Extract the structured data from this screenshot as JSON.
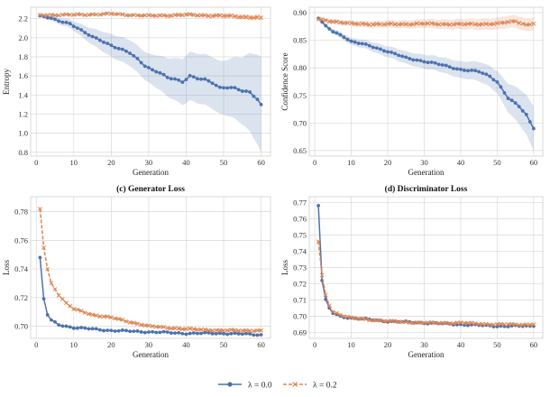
{
  "chart_data": [
    {
      "type": "line",
      "title": "",
      "xlabel": "Generation",
      "ylabel": "Entropy",
      "xlim": [
        -1.5,
        62.5
      ],
      "ylim": [
        0.76,
        2.32
      ],
      "xticks": [
        0,
        10,
        20,
        30,
        40,
        50,
        60
      ],
      "yticks": [
        0.8,
        1.0,
        1.2,
        1.4,
        1.6,
        1.8,
        2.0,
        2.2
      ],
      "ytick_decimals": 1,
      "series": [
        {
          "name": "λ = 0.0",
          "knots": [
            [
              1,
              2.23
            ],
            [
              3,
              2.21
            ],
            [
              5,
              2.19
            ],
            [
              7,
              2.17
            ],
            [
              9,
              2.15
            ],
            [
              11,
              2.1
            ],
            [
              13,
              2.05
            ],
            [
              15,
              2.01
            ],
            [
              17,
              1.98
            ],
            [
              19,
              1.94
            ],
            [
              21,
              1.9
            ],
            [
              23,
              1.87
            ],
            [
              25,
              1.84
            ],
            [
              27,
              1.78
            ],
            [
              29,
              1.71
            ],
            [
              31,
              1.66
            ],
            [
              33,
              1.63
            ],
            [
              35,
              1.58
            ],
            [
              37,
              1.57
            ],
            [
              39,
              1.54
            ],
            [
              41,
              1.6
            ],
            [
              43,
              1.57
            ],
            [
              45,
              1.56
            ],
            [
              47,
              1.53
            ],
            [
              49,
              1.48
            ],
            [
              51,
              1.48
            ],
            [
              53,
              1.47
            ],
            [
              55,
              1.44
            ],
            [
              57,
              1.43
            ],
            [
              59,
              1.36
            ],
            [
              60,
              1.3
            ]
          ],
          "band_knots": [
            [
              1,
              0.01
            ],
            [
              10,
              0.05
            ],
            [
              20,
              0.12
            ],
            [
              30,
              0.15
            ],
            [
              40,
              0.25
            ],
            [
              50,
              0.28
            ],
            [
              55,
              0.35
            ],
            [
              60,
              0.5
            ]
          ]
        },
        {
          "name": "λ = 0.2",
          "knots": [
            [
              1,
              2.24
            ],
            [
              10,
              2.24
            ],
            [
              20,
              2.25
            ],
            [
              30,
              2.23
            ],
            [
              40,
              2.24
            ],
            [
              50,
              2.23
            ],
            [
              60,
              2.21
            ]
          ],
          "band_knots": [
            [
              1,
              0.01
            ],
            [
              30,
              0.02
            ],
            [
              60,
              0.03
            ]
          ]
        }
      ]
    },
    {
      "type": "line",
      "title": "",
      "xlabel": "Generation",
      "ylabel": "Confidence Score",
      "xlim": [
        -1.5,
        62.5
      ],
      "ylim": [
        0.64,
        0.91
      ],
      "xticks": [
        0,
        10,
        20,
        30,
        40,
        50,
        60
      ],
      "yticks": [
        0.65,
        0.7,
        0.75,
        0.8,
        0.85,
        0.9
      ],
      "ytick_decimals": 2,
      "series": [
        {
          "name": "λ = 0.0",
          "knots": [
            [
              1,
              0.89
            ],
            [
              3,
              0.875
            ],
            [
              5,
              0.866
            ],
            [
              8,
              0.857
            ],
            [
              10,
              0.848
            ],
            [
              15,
              0.84
            ],
            [
              20,
              0.83
            ],
            [
              25,
              0.818
            ],
            [
              30,
              0.812
            ],
            [
              35,
              0.805
            ],
            [
              40,
              0.797
            ],
            [
              45,
              0.793
            ],
            [
              48,
              0.785
            ],
            [
              50,
              0.775
            ],
            [
              53,
              0.745
            ],
            [
              56,
              0.73
            ],
            [
              58,
              0.715
            ],
            [
              60,
              0.69
            ]
          ],
          "band_knots": [
            [
              1,
              0.003
            ],
            [
              20,
              0.01
            ],
            [
              40,
              0.015
            ],
            [
              50,
              0.02
            ],
            [
              60,
              0.04
            ]
          ]
        },
        {
          "name": "λ = 0.2",
          "knots": [
            [
              1,
              0.888
            ],
            [
              10,
              0.88
            ],
            [
              20,
              0.879
            ],
            [
              30,
              0.88
            ],
            [
              40,
              0.879
            ],
            [
              50,
              0.88
            ],
            [
              55,
              0.885
            ],
            [
              58,
              0.878
            ],
            [
              60,
              0.88
            ]
          ],
          "band_knots": [
            [
              1,
              0.004
            ],
            [
              60,
              0.012
            ]
          ]
        }
      ]
    },
    {
      "type": "line",
      "title": "(c) Generator Loss",
      "xlabel": "Generation",
      "ylabel": "Loss",
      "xlim": [
        -1.5,
        62.5
      ],
      "ylim": [
        0.6915,
        0.7905
      ],
      "xticks": [
        0,
        10,
        20,
        30,
        40,
        50,
        60
      ],
      "yticks": [
        0.7,
        0.72,
        0.74,
        0.76,
        0.78
      ],
      "ytick_decimals": 2,
      "series": [
        {
          "name": "λ = 0.0",
          "knots": [
            [
              1,
              0.748
            ],
            [
              2,
              0.719
            ],
            [
              3,
              0.708
            ],
            [
              4,
              0.704
            ],
            [
              6,
              0.701
            ],
            [
              10,
              0.699
            ],
            [
              20,
              0.697
            ],
            [
              30,
              0.696
            ],
            [
              40,
              0.695
            ],
            [
              50,
              0.695
            ],
            [
              60,
              0.694
            ]
          ],
          "band_knots": [
            [
              1,
              0.0005
            ],
            [
              60,
              0.0008
            ]
          ]
        },
        {
          "name": "λ = 0.2",
          "knots": [
            [
              1,
              0.782
            ],
            [
              2,
              0.755
            ],
            [
              3,
              0.74
            ],
            [
              4,
              0.73
            ],
            [
              6,
              0.722
            ],
            [
              8,
              0.716
            ],
            [
              10,
              0.712
            ],
            [
              15,
              0.708
            ],
            [
              20,
              0.706
            ],
            [
              25,
              0.703
            ],
            [
              30,
              0.7
            ],
            [
              35,
              0.699
            ],
            [
              40,
              0.698
            ],
            [
              50,
              0.697
            ],
            [
              60,
              0.697
            ]
          ],
          "band_knots": [
            [
              1,
              0.001
            ],
            [
              60,
              0.0012
            ]
          ]
        }
      ]
    },
    {
      "type": "line",
      "title": "(d) Discriminator Loss",
      "xlabel": "Generation",
      "ylabel": "Loss",
      "xlim": [
        -1.5,
        62.5
      ],
      "ylim": [
        0.6865,
        0.7735
      ],
      "xticks": [
        0,
        10,
        20,
        30,
        40,
        50,
        60
      ],
      "yticks": [
        0.69,
        0.7,
        0.71,
        0.72,
        0.73,
        0.74,
        0.75,
        0.76,
        0.77
      ],
      "ytick_decimals": 2,
      "series": [
        {
          "name": "λ = 0.0",
          "knots": [
            [
              1,
              0.768
            ],
            [
              2,
              0.722
            ],
            [
              3,
              0.71
            ],
            [
              4,
              0.705
            ],
            [
              5,
              0.702
            ],
            [
              7,
              0.7
            ],
            [
              10,
              0.699
            ],
            [
              20,
              0.697
            ],
            [
              30,
              0.696
            ],
            [
              40,
              0.695
            ],
            [
              50,
              0.694
            ],
            [
              60,
              0.694
            ]
          ],
          "band_knots": [
            [
              1,
              0.0005
            ],
            [
              60,
              0.0005
            ]
          ]
        },
        {
          "name": "λ = 0.2",
          "knots": [
            [
              1,
              0.746
            ],
            [
              2,
              0.725
            ],
            [
              3,
              0.713
            ],
            [
              4,
              0.707
            ],
            [
              5,
              0.703
            ],
            [
              7,
              0.701
            ],
            [
              10,
              0.699
            ],
            [
              20,
              0.697
            ],
            [
              30,
              0.696
            ],
            [
              40,
              0.696
            ],
            [
              50,
              0.695
            ],
            [
              60,
              0.695
            ]
          ],
          "band_knots": [
            [
              1,
              0.0008
            ],
            [
              60,
              0.0008
            ]
          ]
        }
      ]
    }
  ],
  "legend": {
    "placement": "bottom-center",
    "items": [
      {
        "label": "λ = 0.0",
        "marker": "circle",
        "color": "#4c72b0",
        "dash": false
      },
      {
        "label": "λ = 0.2",
        "marker": "x",
        "color": "#dd8452",
        "dash": true
      }
    ]
  },
  "colors": {
    "series0": "#4c72b0",
    "series1": "#dd8452",
    "grid": "#d9d9d9",
    "axis": "#cfcfcf"
  }
}
